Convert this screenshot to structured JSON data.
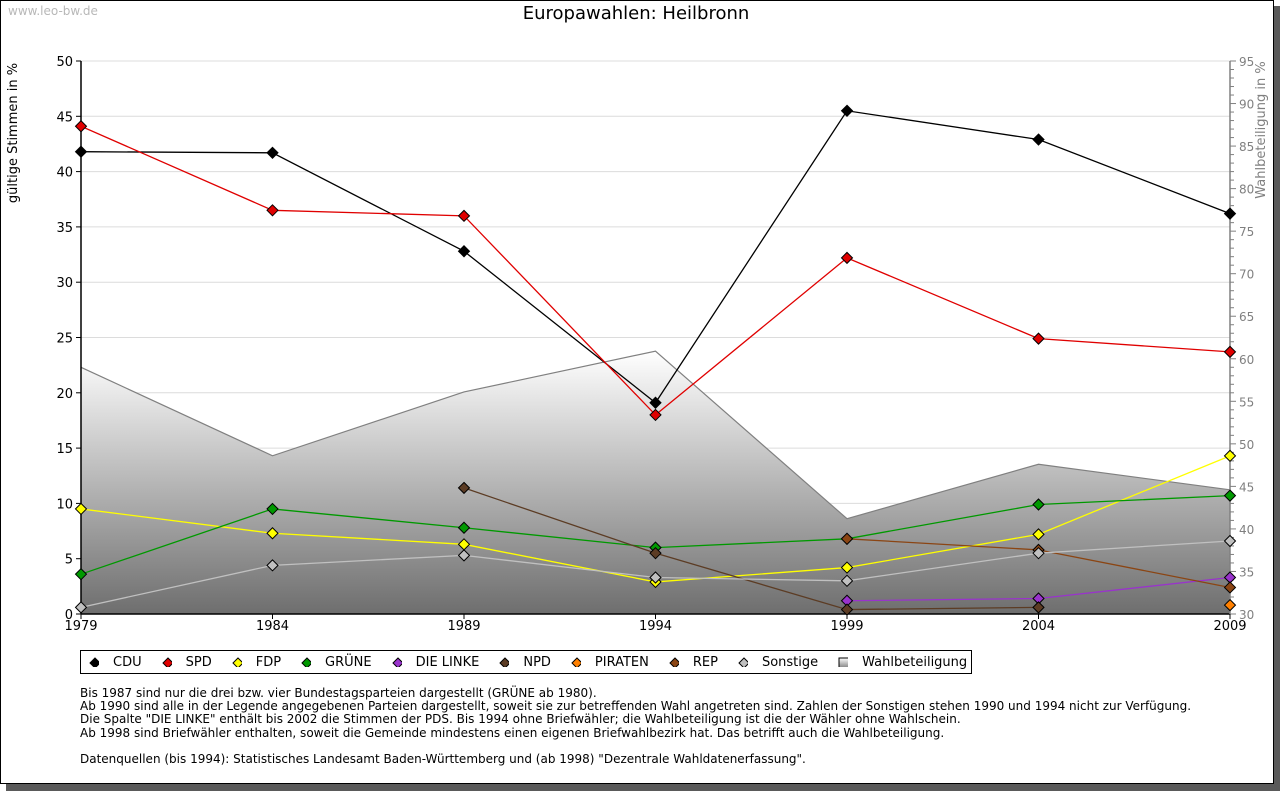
{
  "watermark": "www.leo-bw.de",
  "chart_data": {
    "type": "line",
    "title": "Europawahlen: Heilbronn",
    "ylabel": "gültige Stimmen in %",
    "y2label": "Wahlbeteiligung in %",
    "xlabel": "",
    "x": [
      "1979",
      "1984",
      "1989",
      "1994",
      "1999",
      "2004",
      "2009"
    ],
    "ylim": [
      0,
      50
    ],
    "yticks": [
      "0",
      "5",
      "10",
      "15",
      "20",
      "25",
      "30",
      "35",
      "40",
      "45",
      "50"
    ],
    "y2lim": [
      30,
      95
    ],
    "y2ticks": [
      "30",
      "35",
      "40",
      "45",
      "50",
      "55",
      "60",
      "65",
      "70",
      "75",
      "80",
      "85",
      "90",
      "95"
    ],
    "grid": true,
    "legend_position": "bottom",
    "series": [
      {
        "name": "CDU",
        "color": "#000000",
        "values": [
          41.8,
          41.7,
          32.8,
          19.1,
          45.5,
          42.9,
          36.2
        ]
      },
      {
        "name": "SPD",
        "color": "#e00000",
        "values": [
          44.1,
          36.5,
          36.0,
          18.0,
          32.2,
          24.9,
          23.7
        ]
      },
      {
        "name": "FDP",
        "color": "#ffff00",
        "values": [
          9.5,
          7.3,
          6.3,
          2.9,
          4.2,
          7.2,
          14.3
        ]
      },
      {
        "name": "GRÜNE",
        "color": "#009900",
        "values": [
          3.6,
          9.5,
          7.8,
          6.0,
          6.8,
          9.9,
          10.7
        ]
      },
      {
        "name": "DIE LINKE",
        "color": "#9933cc",
        "values": [
          null,
          null,
          null,
          null,
          1.2,
          1.4,
          3.3
        ]
      },
      {
        "name": "NPD",
        "color": "#5c3c24",
        "values": [
          null,
          null,
          11.4,
          5.5,
          0.4,
          0.6,
          null
        ]
      },
      {
        "name": "PIRATEN",
        "color": "#ff8000",
        "values": [
          null,
          null,
          null,
          null,
          null,
          null,
          0.8
        ]
      },
      {
        "name": "REP",
        "color": "#8b4513",
        "values": [
          null,
          null,
          null,
          null,
          6.8,
          5.8,
          2.4
        ]
      },
      {
        "name": "Sonstige",
        "color": "#c0c0c0",
        "values": [
          0.6,
          4.4,
          5.3,
          3.3,
          3.0,
          5.5,
          6.6
        ]
      }
    ],
    "turnout": {
      "name": "Wahlbeteiligung",
      "axis": "right",
      "values": [
        59.0,
        48.6,
        56.1,
        60.9,
        41.2,
        47.6,
        44.6
      ]
    }
  },
  "legend": [
    {
      "label": "CDU",
      "color": "#000000",
      "shape": "diamond"
    },
    {
      "label": "SPD",
      "color": "#e00000",
      "shape": "diamond"
    },
    {
      "label": "FDP",
      "color": "#ffff00",
      "shape": "diamond"
    },
    {
      "label": "GRÜNE",
      "color": "#009900",
      "shape": "diamond"
    },
    {
      "label": "DIE LINKE",
      "color": "#9933cc",
      "shape": "diamond"
    },
    {
      "label": "NPD",
      "color": "#5c3c24",
      "shape": "diamond"
    },
    {
      "label": "PIRATEN",
      "color": "#ff8000",
      "shape": "diamond"
    },
    {
      "label": "REP",
      "color": "#8b4513",
      "shape": "diamond"
    },
    {
      "label": "Sonstige",
      "color": "#c0c0c0",
      "shape": "diamond"
    },
    {
      "label": "Wahlbeteiligung",
      "color": "#b0b0b0",
      "shape": "square"
    }
  ],
  "notes": [
    "Bis 1987 sind nur die drei bzw. vier Bundestagsparteien dargestellt (GRÜNE ab 1980).",
    "Ab 1990 sind alle in der Legende angegebenen Parteien dargestellt, soweit sie zur betreffenden Wahl angetreten sind. Zahlen der Sonstigen stehen 1990 und 1994 nicht zur Verfügung.",
    "Die Spalte \"DIE LINKE\" enthält bis 2002 die Stimmen der PDS. Bis 1994 ohne Briefwähler; die Wahlbeteiligung ist die der Wähler ohne Wahlschein.",
    "Ab 1998 sind Briefwähler enthalten, soweit die Gemeinde mindestens einen eigenen Briefwahlbezirk hat. Das betrifft auch die Wahlbeteiligung."
  ],
  "source": "Datenquellen (bis 1994): Statistisches Landesamt Baden-Württemberg und (ab 1998) \"Dezentrale Wahldatenerfassung\"."
}
